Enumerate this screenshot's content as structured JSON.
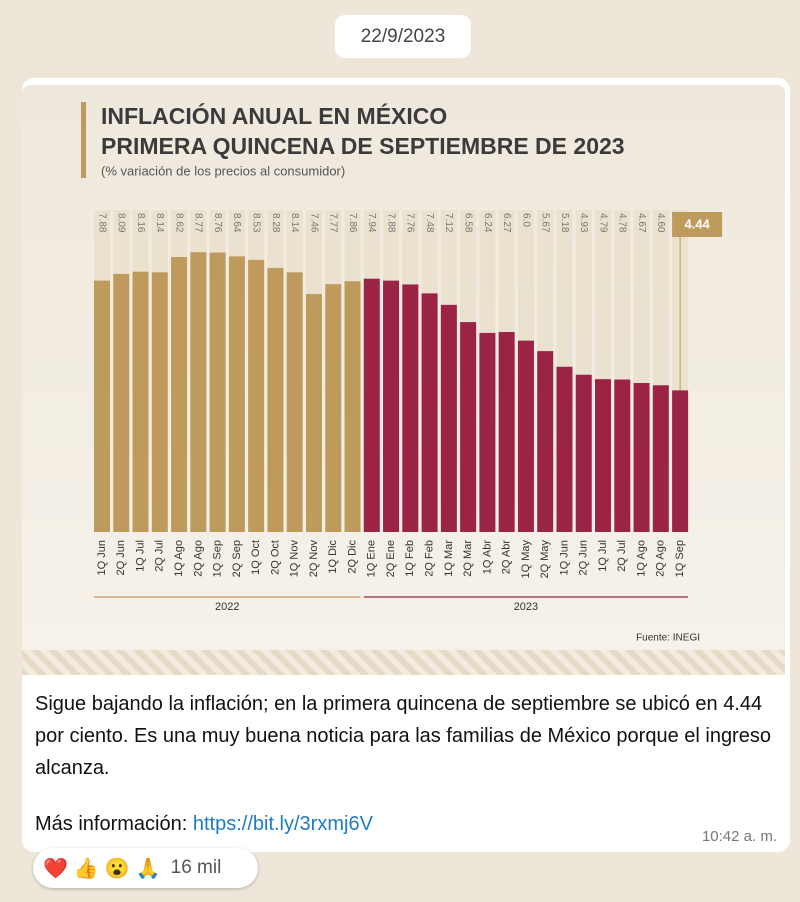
{
  "date": "22/9/2023",
  "chart_data": {
    "type": "bar",
    "title": [
      "INFLACIÓN ANUAL EN MÉXICO",
      "PRIMERA QUINCENA DE SEPTIEMBRE DE 2023"
    ],
    "subtitle": "(% variación de los precios al consumidor)",
    "source": "Fuente: INEGI",
    "categories": [
      "1Q Jun",
      "2Q Jun",
      "1Q Jul",
      "2Q Jul",
      "1Q Ago",
      "2Q Ago",
      "1Q Sep",
      "2Q Sep",
      "1Q Oct",
      "2Q Oct",
      "1Q Nov",
      "2Q Nov",
      "1Q Dic",
      "2Q Dic",
      "1Q Ene",
      "2Q Ene",
      "1Q Feb",
      "2Q Feb",
      "1Q Mar",
      "2Q Mar",
      "1Q Abr",
      "2Q Abr",
      "1Q May",
      "2Q May",
      "1Q Jun",
      "2Q Jun",
      "1Q Jul",
      "2Q Jul",
      "1Q Ago",
      "2Q Ago",
      "1Q Sep"
    ],
    "series": [
      {
        "name": "2022",
        "color": "#bf9a5d",
        "values": [
          7.88,
          8.09,
          8.16,
          8.14,
          8.62,
          8.77,
          8.76,
          8.64,
          8.53,
          8.28,
          8.14,
          7.46,
          7.77,
          7.86,
          null,
          null,
          null,
          null,
          null,
          null,
          null,
          null,
          null,
          null,
          null,
          null,
          null,
          null,
          null,
          null,
          null
        ],
        "value_labels": [
          "7.88",
          "8.09",
          "8.16",
          "8.14",
          "8.62",
          "8.77",
          "8.76",
          "8.64",
          "8.53",
          "8.28",
          "8.14",
          "7.46",
          "7.77",
          "7.86",
          null,
          null,
          null,
          null,
          null,
          null,
          null,
          null,
          null,
          null,
          null,
          null,
          null,
          null,
          null,
          null,
          null
        ]
      },
      {
        "name": "2023",
        "color": "#9b2346",
        "values": [
          null,
          null,
          null,
          null,
          null,
          null,
          null,
          null,
          null,
          null,
          null,
          null,
          null,
          null,
          7.94,
          7.88,
          7.76,
          7.48,
          7.12,
          6.58,
          6.24,
          6.27,
          6.0,
          5.67,
          5.18,
          4.93,
          4.79,
          4.78,
          4.67,
          4.6,
          4.44
        ],
        "value_labels": [
          null,
          null,
          null,
          null,
          null,
          null,
          null,
          null,
          null,
          null,
          null,
          null,
          null,
          null,
          "7.94",
          "7.88",
          "7.76",
          "7.48",
          "7.12",
          "6.58",
          "6.24",
          "6.27",
          "6.0",
          "5.67",
          "5.18",
          "4.93",
          "4.79",
          "4.78",
          "4.67",
          "4.60",
          "4.44"
        ]
      }
    ]
  },
  "message": {
    "paragraph": "Sigue bajando la inflación; en la primera quincena de septiembre se ubicó en 4.44 por ciento. Es una muy buena noticia para las familias de México porque el ingreso alcanza.",
    "more_label": "Más información:",
    "link": "https://bit.ly/3rxmj6V",
    "time": "10:42 a. m."
  },
  "reactions": {
    "emojis": [
      "❤️",
      "👍",
      "😮",
      "🙏"
    ],
    "count": "16 mil"
  }
}
